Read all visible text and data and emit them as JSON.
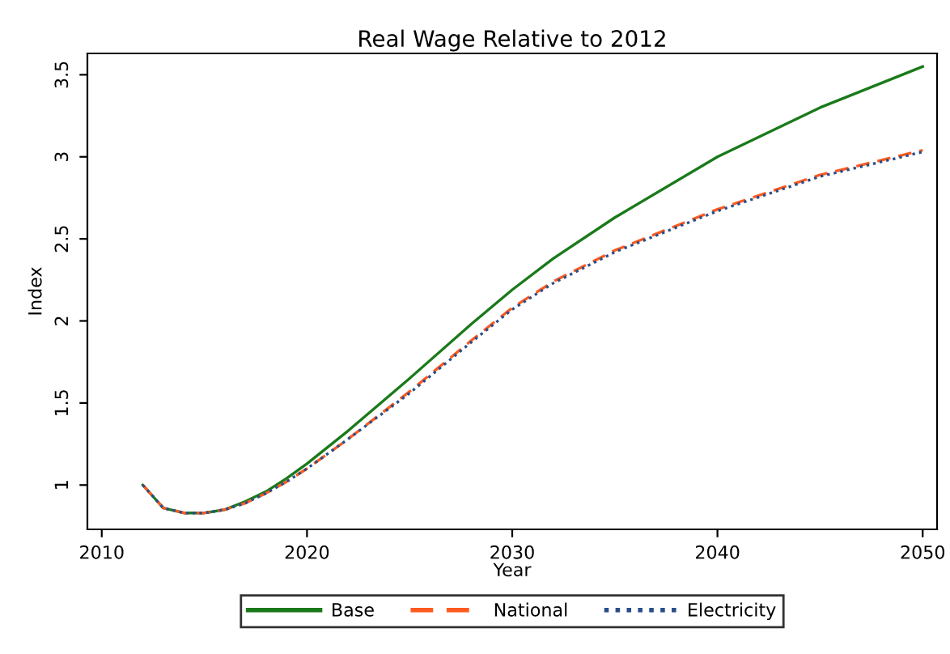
{
  "chart_data": {
    "type": "line",
    "title": "Real Wage Relative to 2012",
    "xlabel": "Year",
    "ylabel": "Index",
    "x": [
      2012,
      2013,
      2014,
      2015,
      2016,
      2017,
      2018,
      2019,
      2020,
      2022,
      2025,
      2028,
      2030,
      2032,
      2035,
      2040,
      2045,
      2050
    ],
    "series": [
      {
        "name": "Base",
        "color": "#1a7a1a",
        "line_style": "solid",
        "values": [
          1.0,
          0.86,
          0.83,
          0.83,
          0.85,
          0.9,
          0.96,
          1.04,
          1.13,
          1.33,
          1.65,
          1.98,
          2.19,
          2.38,
          2.63,
          3.0,
          3.3,
          3.55
        ]
      },
      {
        "name": "National",
        "color": "#ff5a1f",
        "line_style": "dashed",
        "values": [
          1.0,
          0.86,
          0.83,
          0.83,
          0.85,
          0.89,
          0.95,
          1.02,
          1.1,
          1.28,
          1.57,
          1.88,
          2.08,
          2.24,
          2.43,
          2.68,
          2.89,
          3.04
        ]
      },
      {
        "name": "Electricity",
        "color": "#2a4e8a",
        "line_style": "dotted",
        "values": [
          1.0,
          0.86,
          0.83,
          0.83,
          0.85,
          0.89,
          0.95,
          1.02,
          1.1,
          1.28,
          1.56,
          1.87,
          2.07,
          2.23,
          2.42,
          2.67,
          2.88,
          3.03
        ]
      }
    ],
    "xlim": [
      2009.3,
      2050.7
    ],
    "ylim": [
      0.73,
      3.63
    ],
    "xticks": [
      2010,
      2020,
      2030,
      2040,
      2050
    ],
    "yticks": [
      1,
      1.5,
      2,
      2.5,
      3,
      3.5
    ],
    "grid": false,
    "legend": "bottom",
    "marker": "none"
  }
}
